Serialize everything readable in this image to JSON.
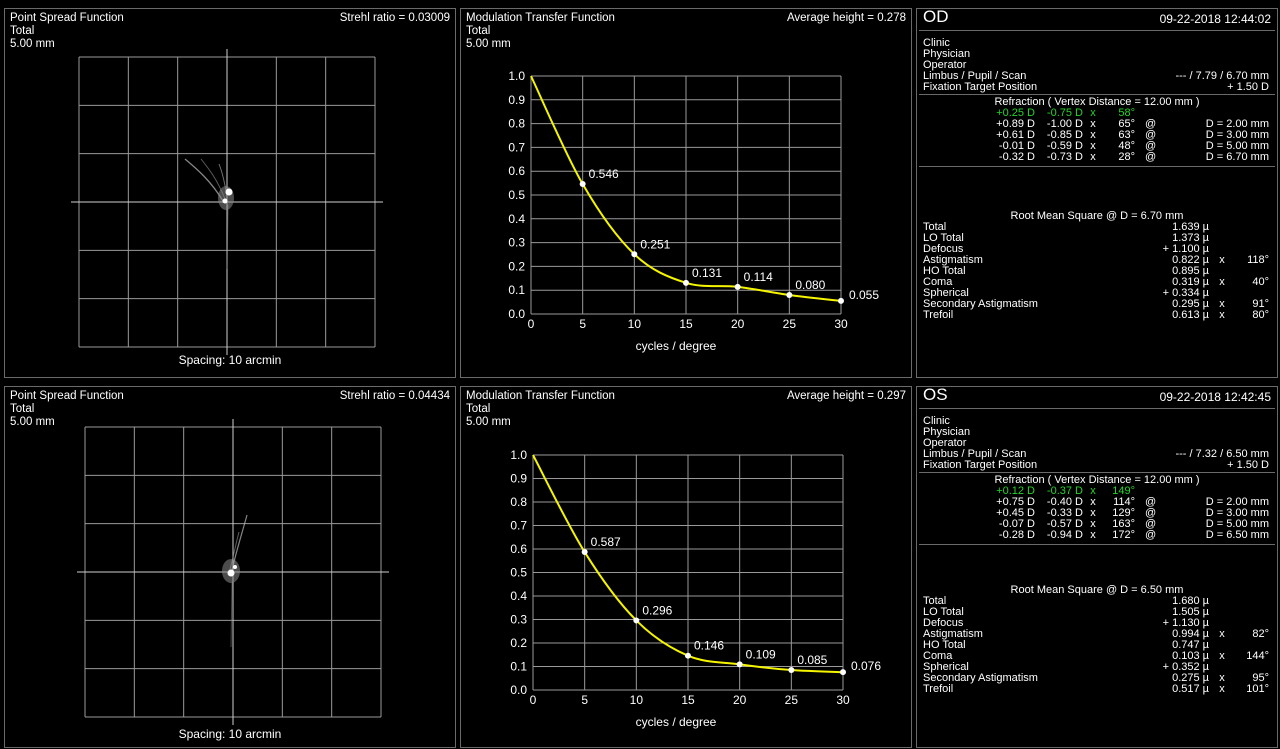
{
  "od": {
    "psf": {
      "title": "Point Spread Function",
      "sub1": "Total",
      "sub2": "5.00 mm",
      "strehl": "Strehl ratio = 0.03009",
      "spacing": "Spacing:  10 arcmin"
    },
    "mtf": {
      "title": "Modulation Transfer Function",
      "sub1": "Total",
      "sub2": "5.00 mm",
      "avg": "Average height = 0.278",
      "xlabel": "cycles / degree"
    },
    "info": {
      "eye": "OD",
      "datetime": "09-22-2018  12:44:02",
      "clinic": "Clinic",
      "physician": "Physician",
      "operator": "Operator",
      "limbus_label": "Limbus / Pupil / Scan",
      "limbus_value": "--- / 7.79 / 6.70 mm",
      "fixation_label": "Fixation Target Position",
      "fixation_value": "+ 1.50 D",
      "refraction_header": "Refraction   ( Vertex Distance = 12.00 mm )",
      "refraction_rows": [
        {
          "sph": "+0.25 D",
          "cyl": "-0.75 D",
          "x": "x",
          "axis": "58°",
          "at": "",
          "d": ""
        },
        {
          "sph": "+0.89 D",
          "cyl": "-1.00 D",
          "x": "x",
          "axis": "65°",
          "at": "@",
          "d": "D = 2.00 mm"
        },
        {
          "sph": "+0.61 D",
          "cyl": "-0.85 D",
          "x": "x",
          "axis": "63°",
          "at": "@",
          "d": "D = 3.00 mm"
        },
        {
          "sph": "-0.01 D",
          "cyl": "-0.59 D",
          "x": "x",
          "axis": "48°",
          "at": "@",
          "d": "D = 5.00 mm"
        },
        {
          "sph": "-0.32 D",
          "cyl": "-0.73 D",
          "x": "x",
          "axis": "28°",
          "at": "@",
          "d": "D = 6.70 mm"
        }
      ],
      "rms_header": "Root Mean Square @ D = 6.70 mm",
      "rms_rows": [
        {
          "label": "Total",
          "value": "1.639 µ",
          "x": "",
          "axis": ""
        },
        {
          "label": "LO Total",
          "value": "1.373 µ",
          "x": "",
          "axis": ""
        },
        {
          "label": "Defocus",
          "value": "+ 1.100 µ",
          "x": "",
          "axis": ""
        },
        {
          "label": "Astigmatism",
          "value": "0.822 µ",
          "x": "x",
          "axis": "118°"
        },
        {
          "label": "HO Total",
          "value": "0.895 µ",
          "x": "",
          "axis": ""
        },
        {
          "label": "Coma",
          "value": "0.319 µ",
          "x": "x",
          "axis": "40°"
        },
        {
          "label": "Spherical",
          "value": "+ 0.334 µ",
          "x": "",
          "axis": ""
        },
        {
          "label": "Secondary Astigmatism",
          "value": "0.295 µ",
          "x": "x",
          "axis": "91°"
        },
        {
          "label": "Trefoil",
          "value": "0.613 µ",
          "x": "x",
          "axis": "80°"
        }
      ]
    }
  },
  "os": {
    "psf": {
      "title": "Point Spread Function",
      "sub1": "Total",
      "sub2": "5.00 mm",
      "strehl": "Strehl ratio = 0.04434",
      "spacing": "Spacing:  10 arcmin"
    },
    "mtf": {
      "title": "Modulation Transfer Function",
      "sub1": "Total",
      "sub2": "5.00 mm",
      "avg": "Average height = 0.297",
      "xlabel": "cycles / degree"
    },
    "info": {
      "eye": "OS",
      "datetime": "09-22-2018  12:42:45",
      "clinic": "Clinic",
      "physician": "Physician",
      "operator": "Operator",
      "limbus_label": "Limbus / Pupil / Scan",
      "limbus_value": "--- / 7.32 / 6.50 mm",
      "fixation_label": "Fixation Target Position",
      "fixation_value": "+ 1.50 D",
      "refraction_header": "Refraction   ( Vertex Distance = 12.00 mm )",
      "refraction_rows": [
        {
          "sph": "+0.12 D",
          "cyl": "-0.37 D",
          "x": "x",
          "axis": "149°",
          "at": "",
          "d": ""
        },
        {
          "sph": "+0.75 D",
          "cyl": "-0.40 D",
          "x": "x",
          "axis": "114°",
          "at": "@",
          "d": "D = 2.00 mm"
        },
        {
          "sph": "+0.45 D",
          "cyl": "-0.33 D",
          "x": "x",
          "axis": "129°",
          "at": "@",
          "d": "D = 3.00 mm"
        },
        {
          "sph": "-0.07 D",
          "cyl": "-0.57 D",
          "x": "x",
          "axis": "163°",
          "at": "@",
          "d": "D = 5.00 mm"
        },
        {
          "sph": "-0.28 D",
          "cyl": "-0.94 D",
          "x": "x",
          "axis": "172°",
          "at": "@",
          "d": "D = 6.50 mm"
        }
      ],
      "rms_header": "Root Mean Square @ D = 6.50 mm",
      "rms_rows": [
        {
          "label": "Total",
          "value": "1.680 µ",
          "x": "",
          "axis": ""
        },
        {
          "label": "LO Total",
          "value": "1.505 µ",
          "x": "",
          "axis": ""
        },
        {
          "label": "Defocus",
          "value": "+ 1.130 µ",
          "x": "",
          "axis": ""
        },
        {
          "label": "Astigmatism",
          "value": "0.994 µ",
          "x": "x",
          "axis": "82°"
        },
        {
          "label": "HO Total",
          "value": "0.747 µ",
          "x": "",
          "axis": ""
        },
        {
          "label": "Coma",
          "value": "0.103 µ",
          "x": "x",
          "axis": "144°"
        },
        {
          "label": "Spherical",
          "value": "+ 0.352 µ",
          "x": "",
          "axis": ""
        },
        {
          "label": "Secondary Astigmatism",
          "value": "0.275 µ",
          "x": "x",
          "axis": "95°"
        },
        {
          "label": "Trefoil",
          "value": "0.517 µ",
          "x": "x",
          "axis": "101°"
        }
      ]
    }
  },
  "colors": {
    "curve": "#f5f500",
    "grid": "#9a9a9a",
    "highlight": "#25d42a",
    "border": "#6a6a6a"
  },
  "chart_data": [
    {
      "type": "line",
      "title": "Modulation Transfer Function",
      "xlabel": "cycles / degree",
      "ylabel": "",
      "xlim": [
        0,
        30
      ],
      "ylim": [
        0,
        1.0
      ],
      "x_ticks": [
        0,
        5,
        10,
        15,
        20,
        25,
        30
      ],
      "y_ticks": [
        0.0,
        0.1,
        0.2,
        0.3,
        0.4,
        0.5,
        0.6,
        0.7,
        0.8,
        0.9,
        1.0
      ],
      "series": [
        {
          "x": [
            0,
            5,
            10,
            15,
            20,
            25,
            30
          ],
          "values": [
            1.0,
            0.546,
            0.251,
            0.131,
            0.114,
            0.08,
            0.055
          ],
          "labels": [
            "",
            "0.546",
            "0.251",
            "0.131",
            "0.114",
            "0.080",
            "0.055"
          ]
        }
      ]
    },
    {
      "type": "line",
      "title": "Modulation Transfer Function",
      "xlabel": "cycles / degree",
      "ylabel": "",
      "xlim": [
        0,
        30
      ],
      "ylim": [
        0,
        1.0
      ],
      "x_ticks": [
        0,
        5,
        10,
        15,
        20,
        25,
        30
      ],
      "y_ticks": [
        0.0,
        0.1,
        0.2,
        0.3,
        0.4,
        0.5,
        0.6,
        0.7,
        0.8,
        0.9,
        1.0
      ],
      "series": [
        {
          "x": [
            0,
            5,
            10,
            15,
            20,
            25,
            30
          ],
          "values": [
            1.0,
            0.587,
            0.296,
            0.146,
            0.109,
            0.085,
            0.076
          ],
          "labels": [
            "",
            "0.587",
            "0.296",
            "0.146",
            "0.109",
            "0.085",
            "0.076"
          ]
        }
      ]
    }
  ]
}
